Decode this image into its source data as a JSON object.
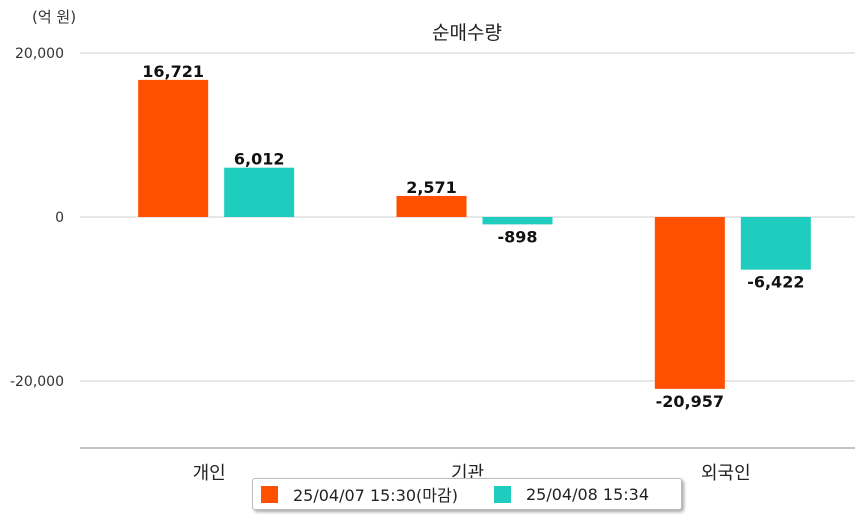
{
  "chart_data": {
    "type": "bar",
    "title": "순매수량",
    "unit": "(억 원)",
    "categories": [
      "개인",
      "기관",
      "외국인"
    ],
    "series": [
      {
        "name": "25/04/07 15:30(마감)",
        "color": "#ff5000",
        "values": [
          16721,
          2571,
          -20957
        ],
        "labels": [
          "16,721",
          "2,571",
          "-20,957"
        ]
      },
      {
        "name": "25/04/08 15:34",
        "color": "#1ecdbd",
        "values": [
          6012,
          -898,
          -6422
        ],
        "labels": [
          "6,012",
          "-898",
          "-6,422"
        ]
      }
    ],
    "yticks": [
      20000,
      0,
      -20000
    ],
    "ytick_labels": [
      "20,000",
      "0",
      "-20,000"
    ],
    "ylim": [
      -25000,
      20000
    ],
    "grid": true,
    "legend_position": "bottom"
  }
}
